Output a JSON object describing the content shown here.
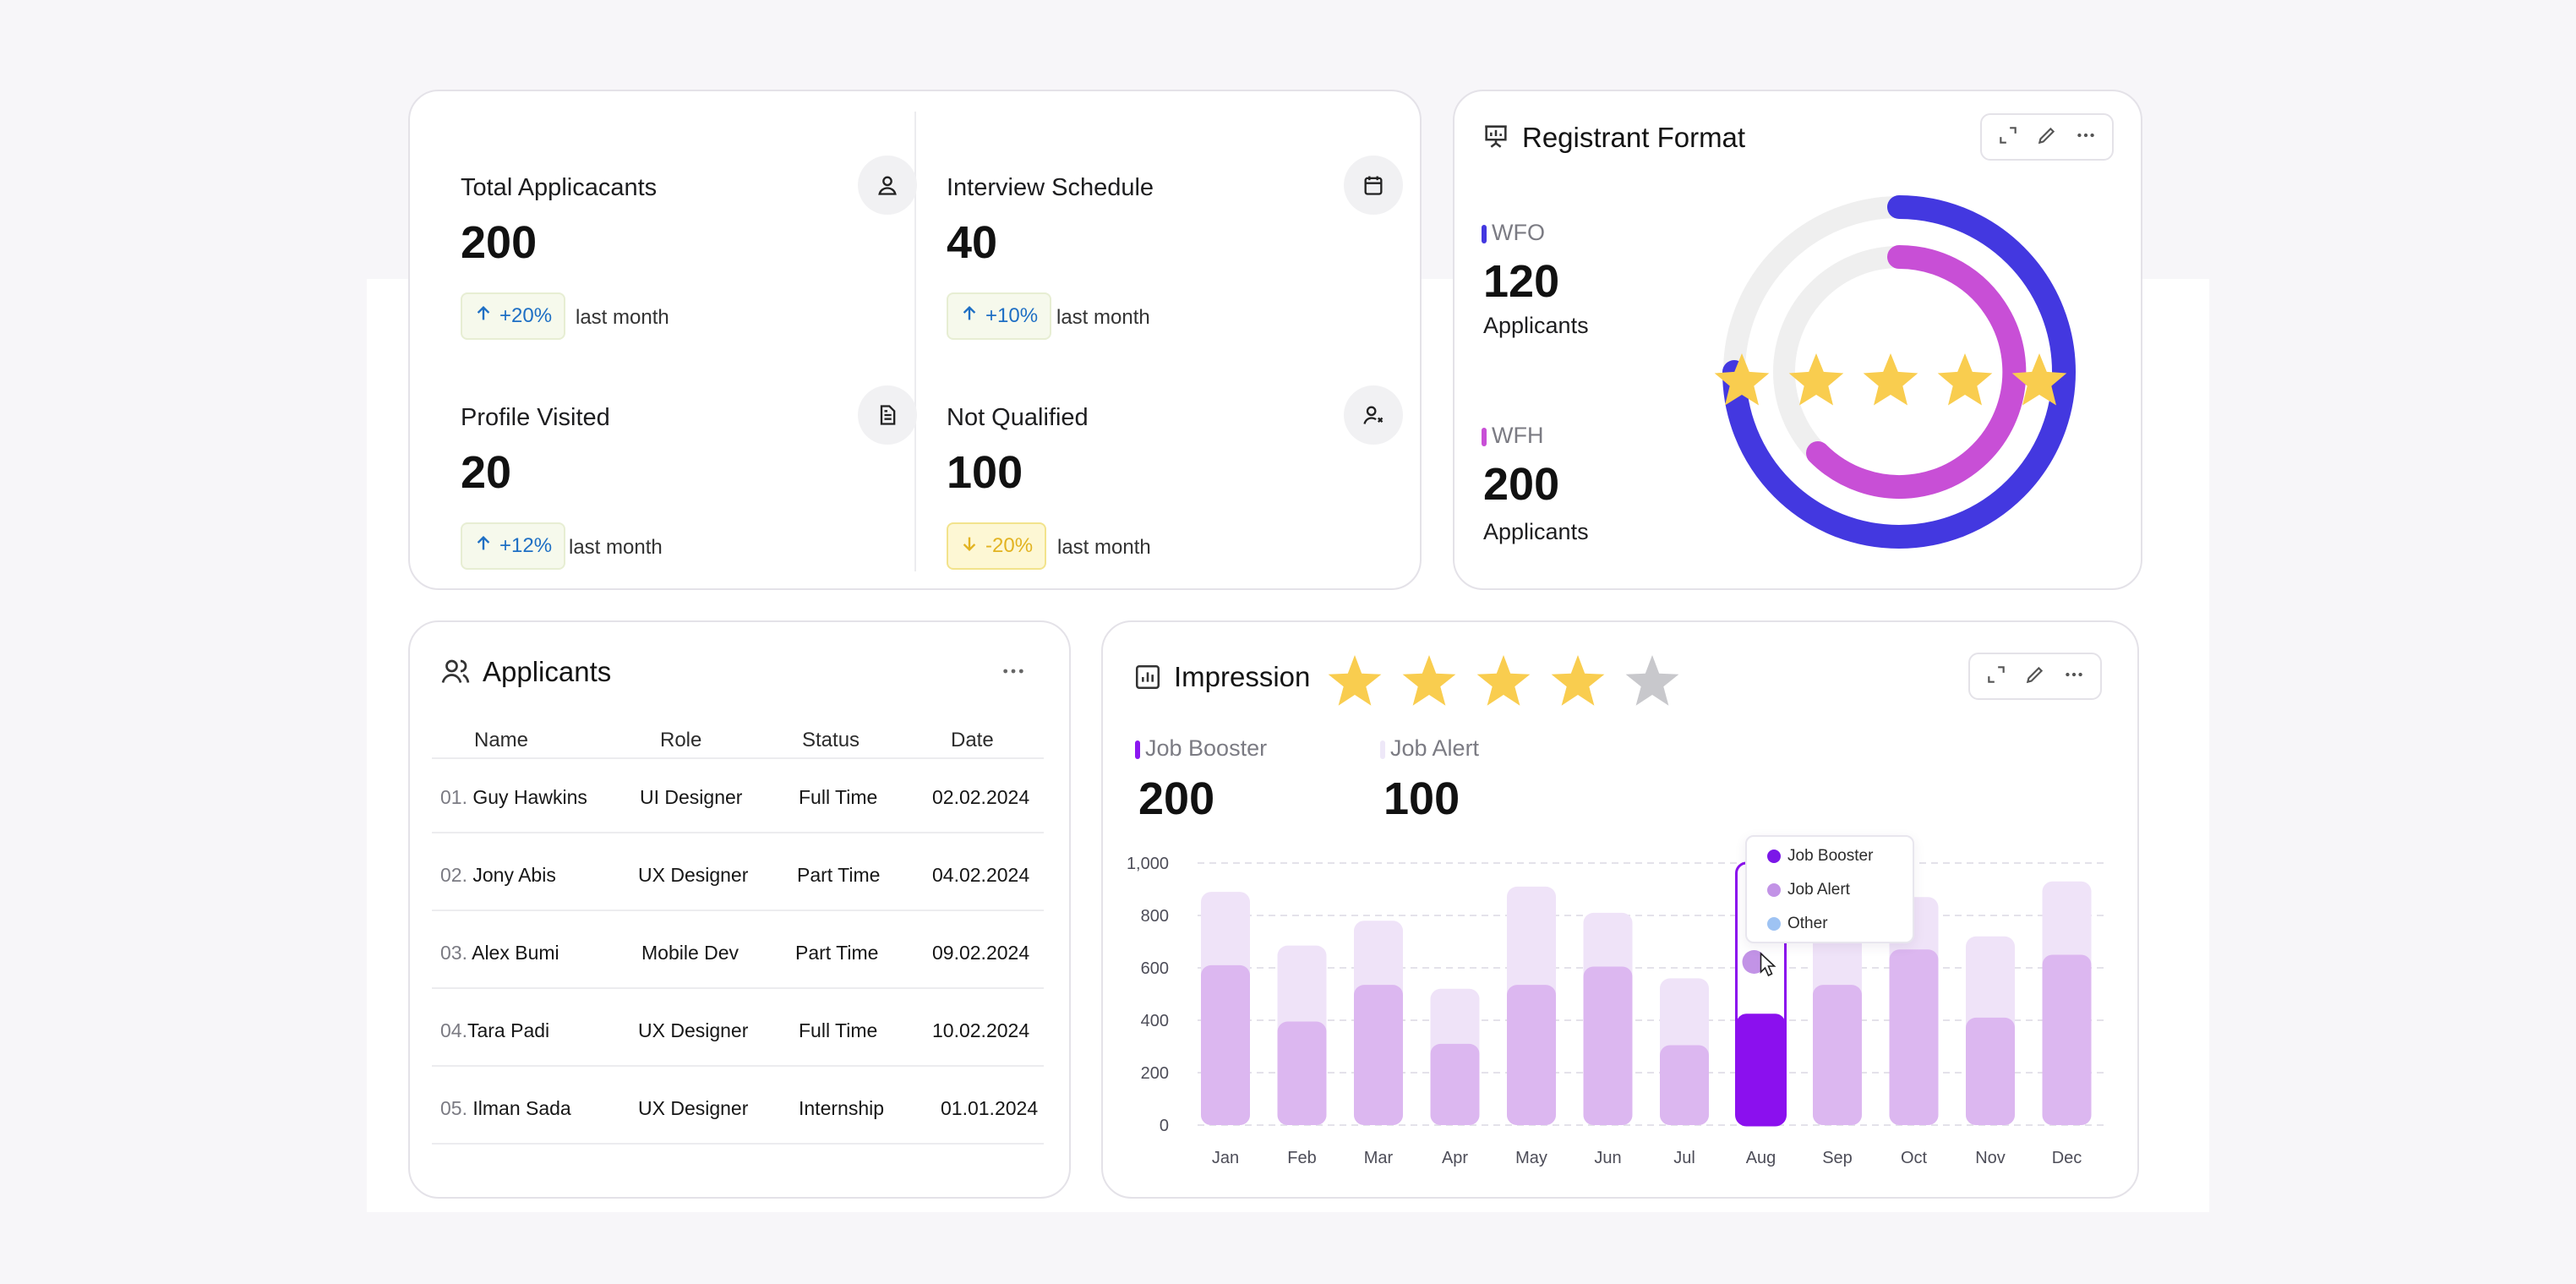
{
  "stats": [
    {
      "label": "Total Applicacants",
      "value": "200",
      "change": "+20%",
      "direction": "up",
      "note": "last month",
      "icon": "user-icon"
    },
    {
      "label": "Interview Schedule",
      "value": "40",
      "change": "+10%",
      "direction": "up",
      "note": "last month",
      "icon": "calendar-icon"
    },
    {
      "label": "Profile Visited",
      "value": "20",
      "change": "+12%",
      "direction": "up",
      "note": "last month",
      "icon": "document-icon"
    },
    {
      "label": "Not Qualified",
      "value": "100",
      "change": "-20%",
      "direction": "down",
      "note": "last month",
      "icon": "user-x-icon"
    }
  ],
  "registrant": {
    "title": "Registrant Format",
    "wfo": {
      "label": "WFO",
      "value": "120",
      "unit": "Applicants",
      "color": "#4338e0"
    },
    "wfh": {
      "label": "WFH",
      "value": "200",
      "unit": "Applicants",
      "color": "#c84fd6"
    },
    "rating_stars": 5
  },
  "applicants": {
    "title": "Applicants",
    "columns": [
      "Name",
      "Role",
      "Status",
      "Date"
    ],
    "rows": [
      {
        "num": "01.",
        "name": "Guy Hawkins",
        "role": "UI Designer",
        "status": "Full Time",
        "date": "02.02.2024"
      },
      {
        "num": "02.",
        "name": "Jony Abis",
        "role": "UX Designer",
        "status": "Part Time",
        "date": "04.02.2024"
      },
      {
        "num": "03.",
        "name": "Alex Bumi",
        "role": "Mobile Dev",
        "status": "Part Time",
        "date": "09.02.2024"
      },
      {
        "num": "04.",
        "name": "Tara Padi",
        "role": "UX Designer",
        "status": "Full Time",
        "date": "10.02.2024"
      },
      {
        "num": "05.",
        "name": "Ilman Sada",
        "role": "UX Designer",
        "status": "Internship",
        "date": "01.01.2024"
      }
    ]
  },
  "impression": {
    "title": "Impression",
    "rating": {
      "filled": 4,
      "total": 5
    },
    "legend": [
      {
        "label": "Job Booster",
        "value": "200",
        "color": "#8b17f0"
      },
      {
        "label": "Job Alert",
        "value": "100",
        "color": "#eee8f8"
      }
    ],
    "tooltip": [
      {
        "label": "Job Booster",
        "color": "#7b17e8"
      },
      {
        "label": "Job Alert",
        "color": "#c293e6"
      },
      {
        "label": "Other",
        "color": "#9ec3f3"
      }
    ]
  },
  "chart_data": {
    "type": "bar",
    "categories": [
      "Jan",
      "Feb",
      "Mar",
      "Apr",
      "May",
      "Jun",
      "Jul",
      "Aug",
      "Sep",
      "Oct",
      "Nov",
      "Dec"
    ],
    "yticks": [
      "0",
      "200",
      "400",
      "600",
      "800",
      "1,000"
    ],
    "ylim": [
      0,
      1000
    ],
    "series": [
      {
        "name": "Job Booster",
        "values": [
          610,
          395,
          535,
          310,
          535,
          605,
          305,
          425,
          535,
          670,
          410,
          650
        ]
      },
      {
        "name": "Job Alert",
        "values": [
          890,
          685,
          780,
          520,
          910,
          810,
          560,
          1000,
          810,
          870,
          720,
          930
        ]
      }
    ],
    "highlight": "Aug",
    "colors": {
      "booster": "#dcb7f0",
      "alert": "#efe3f8",
      "highlight": "#8b10ee"
    }
  }
}
